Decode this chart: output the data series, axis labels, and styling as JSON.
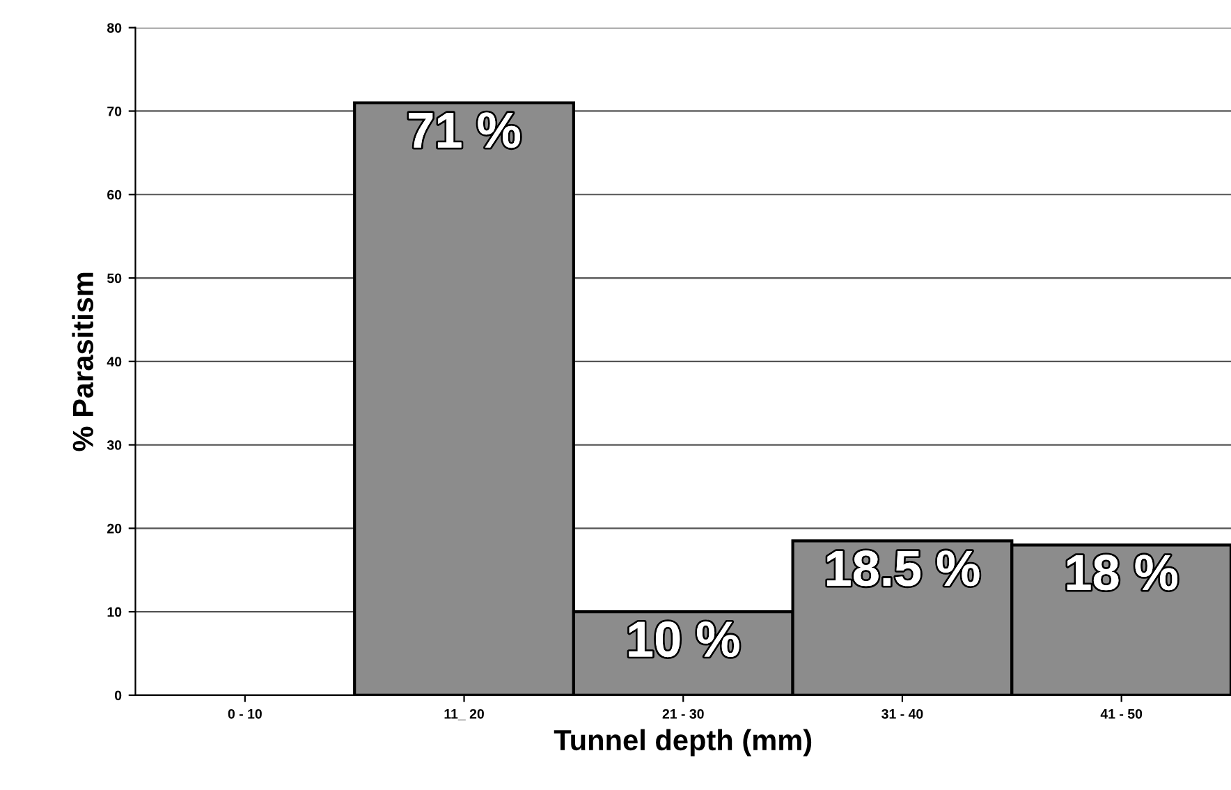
{
  "chart_data": {
    "type": "bar",
    "xlabel": "Tunnel depth (mm)",
    "ylabel": "% Parasitism",
    "categories": [
      "0 - 10",
      "11_ 20",
      "21 - 30",
      "31 - 40",
      "41 - 50"
    ],
    "values": [
      null,
      71,
      10,
      18.5,
      18
    ],
    "value_labels": [
      null,
      "71 %",
      "10 %",
      "18.5 %",
      "18 %"
    ],
    "color": "#8c8c8c",
    "ylim": [
      0,
      80
    ],
    "yticks": [
      0,
      10,
      20,
      30,
      40,
      50,
      60,
      70,
      80
    ],
    "grid": "y",
    "legend": false
  }
}
